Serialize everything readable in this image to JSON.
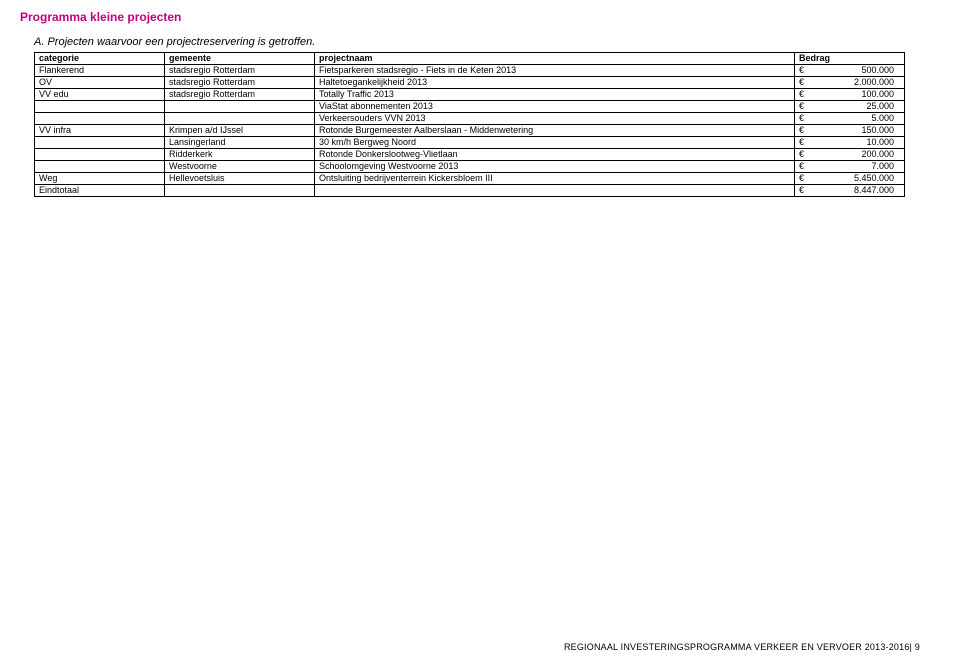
{
  "title": "Programma kleine projecten",
  "subtitle": "A.  Projecten waarvoor een projectreservering is getroffen.",
  "columns": [
    "categorie",
    "gemeente",
    "projectnaam",
    "Bedrag"
  ],
  "rows": [
    {
      "categorie": "Flankerend",
      "gemeente": "stadsregio Rotterdam",
      "projectnaam": "Fietsparkeren stadsregio - Fiets in de Keten 2013",
      "cur": "€",
      "amt": "500.000"
    },
    {
      "categorie": "OV",
      "gemeente": "stadsregio Rotterdam",
      "projectnaam": "Haltetoegankelijkheid 2013",
      "cur": "€",
      "amt": "2.000.000"
    },
    {
      "categorie": "VV edu",
      "gemeente": "stadsregio Rotterdam",
      "projectnaam": "Totally Traffic 2013",
      "cur": "€",
      "amt": "100.000"
    },
    {
      "categorie": "",
      "gemeente": "",
      "projectnaam": "ViaStat abonnementen 2013",
      "cur": "€",
      "amt": "25.000"
    },
    {
      "categorie": "",
      "gemeente": "",
      "projectnaam": "Verkeersouders VVN 2013",
      "cur": "€",
      "amt": "5.000"
    },
    {
      "categorie": "VV infra",
      "gemeente": "Krimpen a/d IJssel",
      "projectnaam": "Rotonde Burgemeester Aalberslaan - Middenwetering",
      "cur": "€",
      "amt": "150.000"
    },
    {
      "categorie": "",
      "gemeente": "Lansingerland",
      "projectnaam": "30 km/h Bergweg Noord",
      "cur": "€",
      "amt": "10.000"
    },
    {
      "categorie": "",
      "gemeente": "Ridderkerk",
      "projectnaam": "Rotonde Donkerslootweg-Vlietlaan",
      "cur": "€",
      "amt": "200.000"
    },
    {
      "categorie": "",
      "gemeente": "Westvoorne",
      "projectnaam": "Schoolomgeving Westvoorne 2013",
      "cur": "€",
      "amt": "7.000"
    },
    {
      "categorie": "Weg",
      "gemeente": "Hellevoetsluis",
      "projectnaam": "Ontsluiting bedrijventerrein Kickersbloem III",
      "cur": "€",
      "amt": "5.450.000"
    },
    {
      "categorie": "Eindtotaal",
      "gemeente": "",
      "projectnaam": "",
      "cur": "€",
      "amt": "8.447.000"
    }
  ],
  "footer": "REGIONAAL INVESTERINGSPROGRAMMA VERKEER EN VERVOER 2013-2016| 9"
}
